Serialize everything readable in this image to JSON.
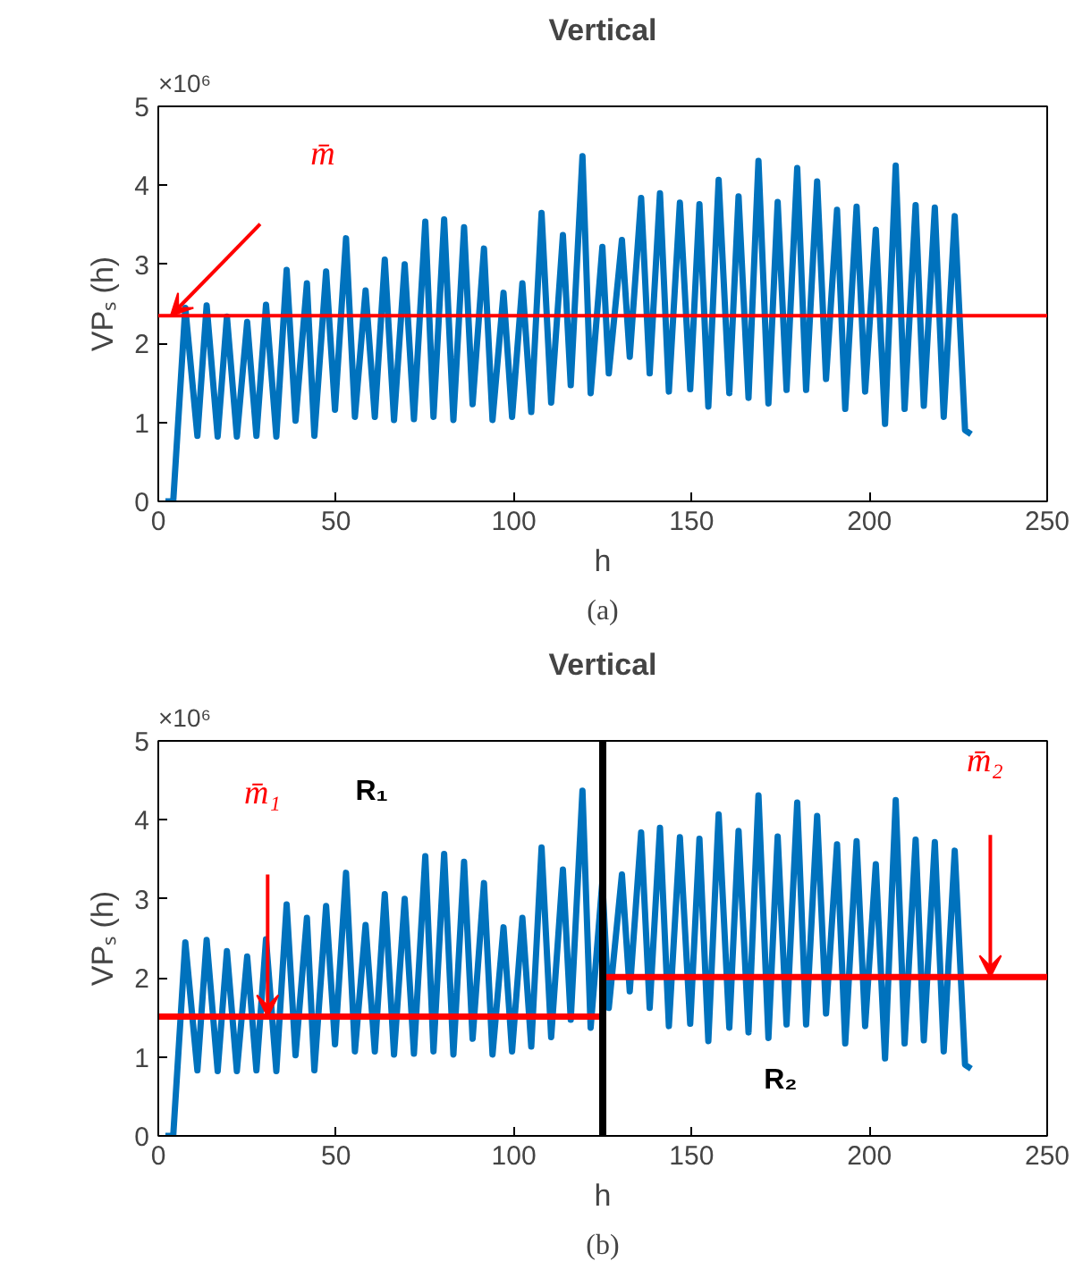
{
  "chart_data": [
    {
      "type": "line",
      "title": "Vertical",
      "xlabel": "h",
      "ylabel": "VPₛ (h)",
      "x": [
        2,
        4.2,
        7.6,
        11,
        13.6,
        16.7,
        19.3,
        22.1,
        25,
        27.6,
        30.3,
        33.2,
        36.1,
        38.6,
        41.8,
        43.9,
        47.2,
        49.7,
        52.8,
        55.3,
        58.3,
        60.9,
        63.7,
        66.3,
        69.3,
        71.9,
        75.1,
        77.4,
        80.4,
        83,
        86,
        88.4,
        91.6,
        94,
        97.1,
        99.5,
        102.4,
        104.9,
        107.8,
        110.5,
        113.8,
        116,
        119.3,
        121.6,
        124.9,
        126.7,
        130.4,
        132.6,
        135.8,
        138.2,
        141.1,
        143.6,
        146.7,
        149.6,
        152.2,
        154.7,
        157.6,
        160.6,
        163.2,
        166,
        168.8,
        171.6,
        174.2,
        176.7,
        179.7,
        182.2,
        185.3,
        187.8,
        190.9,
        193.2,
        196.4,
        198.8,
        201.8,
        204.4,
        207.4,
        209.9,
        213,
        215.3,
        218.4,
        220.9,
        224,
        226.9,
        228.6
      ],
      "series": [
        {
          "color": "#0072bd",
          "values": [
            0,
            0,
            2.45,
            0.83,
            2.48,
            0.82,
            2.34,
            0.82,
            2.27,
            0.83,
            2.49,
            0.82,
            2.93,
            1.02,
            2.76,
            0.83,
            2.91,
            1.16,
            3.33,
            1.07,
            2.67,
            1.07,
            3.06,
            1.03,
            3.0,
            1.04,
            3.54,
            1.07,
            3.57,
            1.03,
            3.47,
            1.23,
            3.2,
            1.03,
            2.64,
            1.07,
            2.76,
            1.13,
            3.65,
            1.25,
            3.37,
            1.47,
            4.37,
            1.37,
            3.22,
            1.62,
            3.31,
            1.83,
            3.84,
            1.62,
            3.9,
            1.39,
            3.78,
            1.42,
            3.76,
            1.2,
            4.07,
            1.37,
            3.86,
            1.31,
            4.31,
            1.24,
            3.79,
            1.41,
            4.22,
            1.41,
            4.05,
            1.55,
            3.69,
            1.17,
            3.73,
            1.39,
            3.44,
            0.98,
            4.25,
            1.17,
            3.75,
            1.21,
            3.72,
            1.07,
            3.61,
            0.9,
            0.85
          ]
        }
      ],
      "ref_lines": [
        {
          "axis": "y",
          "value": 2.35,
          "color": "#ff0000"
        }
      ],
      "annotations": [
        "×10⁶",
        "(a)",
        "m̄"
      ],
      "xlim": [
        0,
        250
      ],
      "ylim": [
        0,
        5
      ],
      "xticks": [
        0,
        50,
        100,
        150,
        200,
        250
      ],
      "yticks": [
        0,
        1,
        2,
        3,
        4,
        5
      ],
      "grid": false
    },
    {
      "type": "line",
      "title": "Vertical",
      "xlabel": "h",
      "ylabel": "VPₛ (h)",
      "x": [
        2,
        4.2,
        7.6,
        11,
        13.6,
        16.7,
        19.3,
        22.1,
        25,
        27.6,
        30.3,
        33.2,
        36.1,
        38.6,
        41.8,
        43.9,
        47.2,
        49.7,
        52.8,
        55.3,
        58.3,
        60.9,
        63.7,
        66.3,
        69.3,
        71.9,
        75.1,
        77.4,
        80.4,
        83,
        86,
        88.4,
        91.6,
        94,
        97.1,
        99.5,
        102.4,
        104.9,
        107.8,
        110.5,
        113.8,
        116,
        119.3,
        121.6,
        124.9,
        126.7,
        130.4,
        132.6,
        135.8,
        138.2,
        141.1,
        143.6,
        146.7,
        149.6,
        152.2,
        154.7,
        157.6,
        160.6,
        163.2,
        166,
        168.8,
        171.6,
        174.2,
        176.7,
        179.7,
        182.2,
        185.3,
        187.8,
        190.9,
        193.2,
        196.4,
        198.8,
        201.8,
        204.4,
        207.4,
        209.9,
        213,
        215.3,
        218.4,
        220.9,
        224,
        226.9,
        228.6
      ],
      "series": [
        {
          "color": "#0072bd",
          "values": [
            0,
            0,
            2.45,
            0.83,
            2.48,
            0.82,
            2.34,
            0.82,
            2.27,
            0.83,
            2.49,
            0.82,
            2.93,
            1.02,
            2.76,
            0.83,
            2.91,
            1.16,
            3.33,
            1.07,
            2.67,
            1.07,
            3.06,
            1.03,
            3.0,
            1.04,
            3.54,
            1.07,
            3.57,
            1.03,
            3.47,
            1.23,
            3.2,
            1.03,
            2.64,
            1.07,
            2.76,
            1.13,
            3.65,
            1.25,
            3.37,
            1.47,
            4.37,
            1.37,
            3.22,
            1.62,
            3.31,
            1.83,
            3.84,
            1.62,
            3.9,
            1.39,
            3.78,
            1.42,
            3.76,
            1.2,
            4.07,
            1.37,
            3.86,
            1.31,
            4.31,
            1.24,
            3.79,
            1.41,
            4.22,
            1.41,
            4.05,
            1.55,
            3.69,
            1.17,
            3.73,
            1.39,
            3.44,
            0.98,
            4.25,
            1.17,
            3.75,
            1.21,
            3.72,
            1.07,
            3.61,
            0.9,
            0.85
          ]
        },
        {
          "type": "line",
          "color": "#ff0000",
          "x": [
            0,
            125
          ],
          "values": [
            1.51,
            1.51
          ]
        },
        {
          "type": "line",
          "color": "#ff0000",
          "x": [
            125,
            250
          ],
          "values": [
            2.01,
            2.01
          ]
        }
      ],
      "ref_lines": [
        {
          "axis": "x",
          "value": 125,
          "color": "#000000"
        }
      ],
      "annotations": [
        "×10⁶",
        "(b)",
        "m̄₁",
        "m̄₂",
        "R₁",
        "R₂"
      ],
      "xlim": [
        0,
        250
      ],
      "ylim": [
        0,
        5
      ],
      "xticks": [
        0,
        50,
        100,
        150,
        200,
        250
      ],
      "yticks": [
        0,
        1,
        2,
        3,
        4,
        5
      ],
      "grid": false
    }
  ]
}
